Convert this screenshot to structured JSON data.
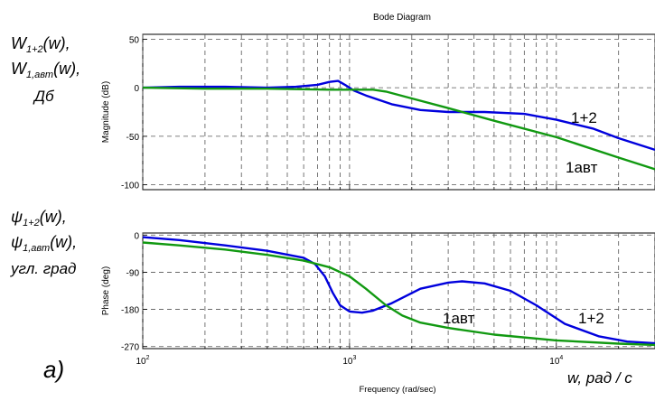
{
  "figure": {
    "title": "Bode Diagram",
    "xlabel": "Frequency (rad/sec)",
    "panel_marker": "a)",
    "x_unit_note": "w, рад / c",
    "left_labels_top": [
      "W1+2(w),",
      "W1,авт(w),",
      "Дб"
    ],
    "left_labels_bottom": [
      "ψ1+2(w),",
      "ψ1,авт(w),",
      "угл. град"
    ]
  },
  "chart_data": [
    {
      "type": "line",
      "title": "Bode Diagram",
      "ylabel": "Magnitude (dB)",
      "xlabel": "",
      "xscale": "log",
      "xlim": [
        100,
        30000
      ],
      "ylim": [
        -105,
        55
      ],
      "yticks": [
        50,
        0,
        -50,
        -100
      ],
      "xticks": [
        100,
        1000,
        10000
      ],
      "xtick_labels": [
        "10^2",
        "10^3",
        "10^4"
      ],
      "grid": true,
      "series": [
        {
          "name": "1+2",
          "color": "#0000dd",
          "x": [
            100,
            150,
            250,
            400,
            550,
            700,
            800,
            880,
            950,
            1050,
            1200,
            1600,
            2200,
            3000,
            4500,
            7000,
            10000,
            15000,
            20000,
            30000
          ],
          "y": [
            0,
            1,
            1,
            0,
            1,
            3,
            6,
            7,
            3,
            -3,
            -8,
            -17,
            -23,
            -25,
            -25,
            -27,
            -33,
            -42,
            -52,
            -64
          ]
        },
        {
          "name": "1авт",
          "color": "#119911",
          "x": [
            100,
            200,
            400,
            800,
            1300,
            1500,
            2000,
            3000,
            5000,
            10000,
            20000,
            30000
          ],
          "y": [
            0,
            -1,
            -1,
            -2,
            -2,
            -4,
            -11,
            -21,
            -34,
            -51,
            -72,
            -84
          ]
        }
      ],
      "annotations": [
        "1+2",
        "1авт"
      ]
    },
    {
      "type": "line",
      "ylabel": "Phase (deg)",
      "xlabel": "Frequency (rad/sec)",
      "xscale": "log",
      "xlim": [
        100,
        30000
      ],
      "ylim": [
        -275,
        5
      ],
      "yticks": [
        0,
        -90,
        -180,
        -270
      ],
      "xticks": [
        100,
        1000,
        10000
      ],
      "xtick_labels": [
        "10^2",
        "10^3",
        "10^4"
      ],
      "grid": true,
      "series": [
        {
          "name": "1+2",
          "color": "#0000dd",
          "x": [
            100,
            150,
            250,
            400,
            600,
            680,
            760,
            830,
            900,
            1000,
            1150,
            1300,
            1600,
            2200,
            3000,
            3500,
            4500,
            6000,
            8000,
            11000,
            16000,
            22000,
            30000
          ],
          "y": [
            -5,
            -12,
            -25,
            -38,
            -55,
            -70,
            -100,
            -140,
            -170,
            -185,
            -188,
            -183,
            -165,
            -130,
            -115,
            -112,
            -117,
            -135,
            -170,
            -215,
            -245,
            -258,
            -262
          ]
        },
        {
          "name": "1авт",
          "color": "#119911",
          "x": [
            100,
            150,
            250,
            400,
            600,
            800,
            1000,
            1200,
            1500,
            1800,
            2200,
            3000,
            5000,
            10000,
            20000,
            30000
          ],
          "y": [
            -18,
            -25,
            -35,
            -48,
            -62,
            -78,
            -100,
            -130,
            -170,
            -195,
            -212,
            -225,
            -241,
            -255,
            -263,
            -266
          ]
        }
      ],
      "annotations": [
        "1авт",
        "1+2"
      ]
    }
  ]
}
